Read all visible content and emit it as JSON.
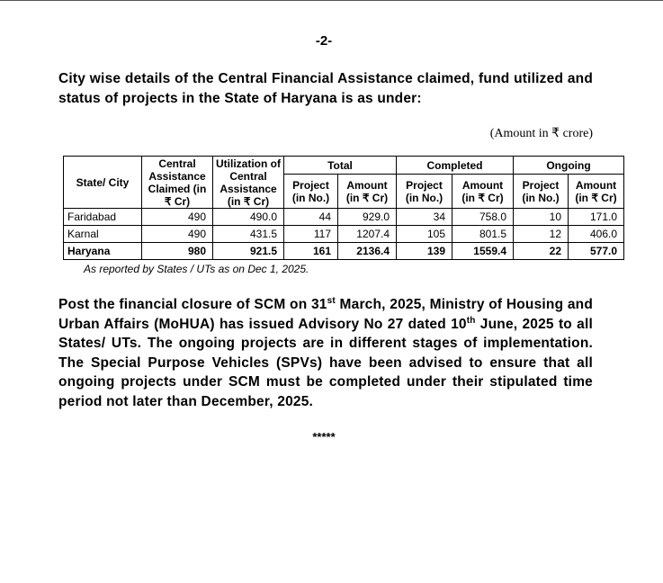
{
  "page_number": "-2-",
  "heading": "City wise details of the Central Financial Assistance claimed, fund utilized and status of projects in the State of Haryana is as under:",
  "unit_note": "(Amount in ₹ crore)",
  "table": {
    "header_top": [
      "State/ City",
      "Central Assistance Claimed (in ₹ Cr)",
      "Utilization of Central Assistance (in ₹ Cr)",
      "Total",
      "Completed",
      "Ongoing"
    ],
    "header_sub": [
      "Project (in No.)",
      "Amount (in ₹ Cr)",
      "Project (in No.)",
      "Amount (in ₹ Cr)",
      "Project (in No.)",
      "Amount (in ₹ Cr)"
    ],
    "rows": [
      [
        "Faridabad",
        "490",
        "490.0",
        "44",
        "929.0",
        "34",
        "758.0",
        "10",
        "171.0"
      ],
      [
        "Karnal",
        "490",
        "431.5",
        "117",
        "1207.4",
        "105",
        "801.5",
        "12",
        "406.0"
      ],
      [
        "Haryana",
        "980",
        "921.5",
        "161",
        "2136.4",
        "139",
        "1559.4",
        "22",
        "577.0"
      ]
    ]
  },
  "footnote": "As reported by States / UTs as on Dec 1, 2025.",
  "paragraph": [
    "Post the financial closure of SCM on 31",
    "st",
    " March, 2025, Ministry of Housing and Urban Affairs (MoHUA) has issued Advisory No 27 dated 10",
    "th",
    " June, 2025 to all States/ UTs. The ongoing projects are in different stages of implementation. The Special Purpose Vehicles (SPVs) have been advised to ensure that all ongoing projects under SCM must be completed under their stipulated time period not later than December, 2025."
  ],
  "closing": "*****"
}
